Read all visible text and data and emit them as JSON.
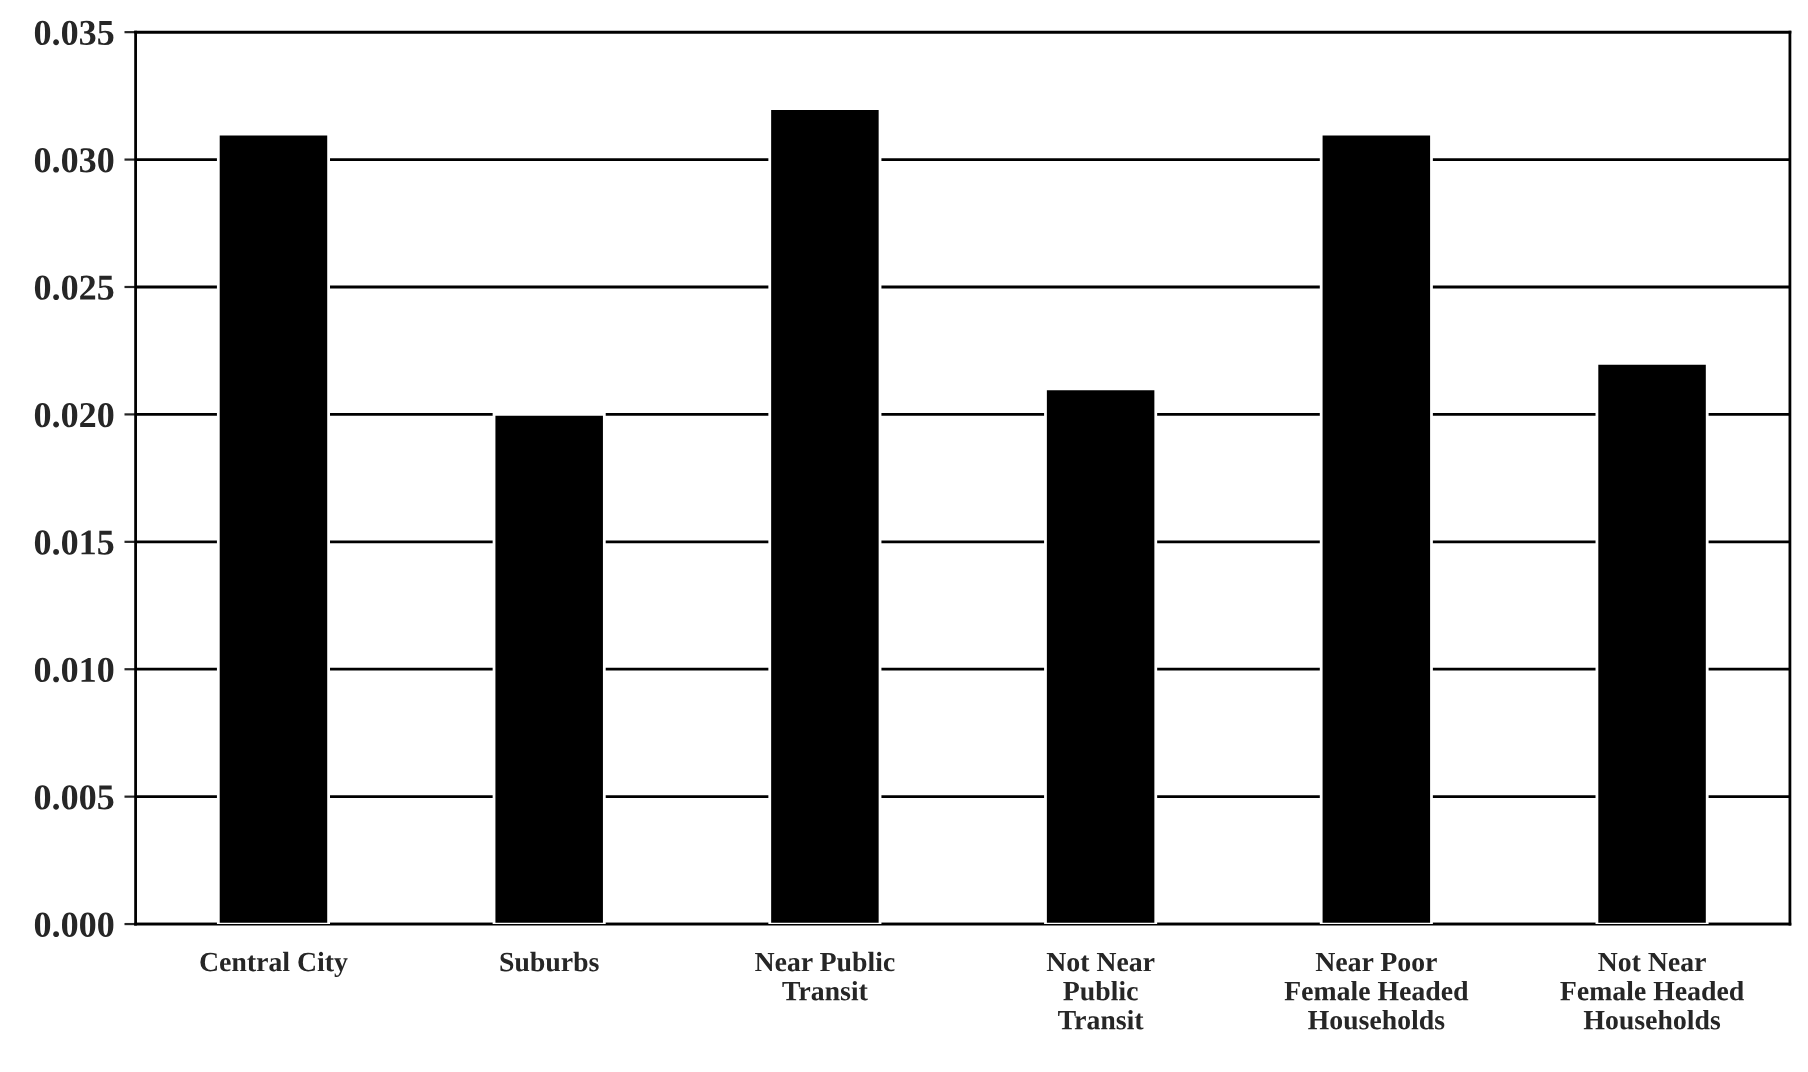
{
  "chart_data": {
    "type": "bar",
    "categories": [
      "Central City",
      "Suburbs",
      "Near Public\nTransit",
      "Not Near\nPublic\nTransit",
      "Near Poor\nFemale Headed\nHouseholds",
      "Not Near\nFemale Headed\nHouseholds"
    ],
    "values": [
      0.031,
      0.02,
      0.032,
      0.021,
      0.031,
      0.022
    ],
    "color": "#000000",
    "ylim": [
      0,
      0.035
    ],
    "yticks": [
      {
        "value": 0,
        "label": "0.000"
      },
      {
        "value": 0.005,
        "label": "0.005"
      },
      {
        "value": 0.01,
        "label": "0.010"
      },
      {
        "value": 0.015,
        "label": "0.015"
      },
      {
        "value": 0.02,
        "label": "0.020"
      },
      {
        "value": 0.025,
        "label": "0.025"
      },
      {
        "value": 0.03,
        "label": "0.030"
      },
      {
        "value": 0.035,
        "label": "0.035"
      }
    ],
    "grid": "y",
    "legend": false
  }
}
